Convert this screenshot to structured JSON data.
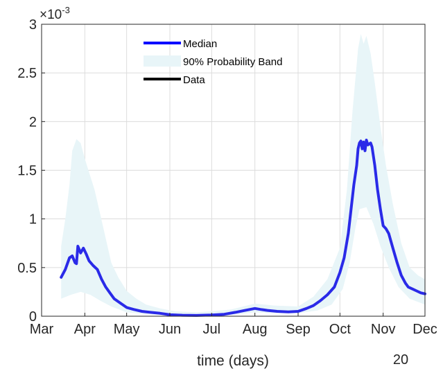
{
  "chart_data": {
    "type": "line",
    "title": "",
    "xlabel": "time (days)",
    "ylabel": "",
    "y_exponent_label": {
      "base": "×10",
      "power": "-3"
    },
    "x_secondary_label": "20",
    "x_ticks": [
      {
        "label": "Mar",
        "date": "2020-03-01"
      },
      {
        "label": "Apr",
        "date": "2020-04-01"
      },
      {
        "label": "May",
        "date": "2020-05-01"
      },
      {
        "label": "Jun",
        "date": "2020-06-01"
      },
      {
        "label": "Jul",
        "date": "2020-07-01"
      },
      {
        "label": "Aug",
        "date": "2020-08-01"
      },
      {
        "label": "Sep",
        "date": "2020-09-01"
      },
      {
        "label": "Oct",
        "date": "2020-10-01"
      },
      {
        "label": "Nov",
        "date": "2020-11-01"
      },
      {
        "label": "Dec",
        "date": "2020-12-01"
      }
    ],
    "y_ticks": [
      {
        "label": "0",
        "value": 0
      },
      {
        "label": "0.5",
        "value": 0.5
      },
      {
        "label": "1",
        "value": 1.0
      },
      {
        "label": "1.5",
        "value": 1.5
      },
      {
        "label": "2",
        "value": 2.0
      },
      {
        "label": "2.5",
        "value": 2.5
      },
      {
        "label": "3",
        "value": 3.0
      }
    ],
    "xlim": [
      "2020-03-01",
      "2020-12-01"
    ],
    "ylim": [
      0,
      3
    ],
    "grid": true,
    "legend_position": "top-center",
    "legend": [
      {
        "label": "Median",
        "kind": "line",
        "color": "#0000ff"
      },
      {
        "label": "90% Probability Band",
        "kind": "band",
        "color": "#e8f5f8"
      },
      {
        "label": "Data",
        "kind": "line",
        "color": "#000000"
      }
    ],
    "series": [
      {
        "name": "Median",
        "color": "#2a2ae8",
        "points": [
          [
            "2020-03-15",
            0.4
          ],
          [
            "2020-03-18",
            0.48
          ],
          [
            "2020-03-21",
            0.6
          ],
          [
            "2020-03-23",
            0.62
          ],
          [
            "2020-03-25",
            0.55
          ],
          [
            "2020-03-26",
            0.54
          ],
          [
            "2020-03-27",
            0.72
          ],
          [
            "2020-03-29",
            0.65
          ],
          [
            "2020-03-31",
            0.7
          ],
          [
            "2020-04-02",
            0.64
          ],
          [
            "2020-04-04",
            0.57
          ],
          [
            "2020-04-07",
            0.52
          ],
          [
            "2020-04-10",
            0.48
          ],
          [
            "2020-04-13",
            0.38
          ],
          [
            "2020-04-16",
            0.3
          ],
          [
            "2020-04-19",
            0.24
          ],
          [
            "2020-04-22",
            0.18
          ],
          [
            "2020-04-26",
            0.14
          ],
          [
            "2020-05-01",
            0.09
          ],
          [
            "2020-05-06",
            0.07
          ],
          [
            "2020-05-12",
            0.05
          ],
          [
            "2020-05-18",
            0.04
          ],
          [
            "2020-05-25",
            0.03
          ],
          [
            "2020-06-01",
            0.015
          ],
          [
            "2020-06-10",
            0.01
          ],
          [
            "2020-06-20",
            0.008
          ],
          [
            "2020-07-01",
            0.012
          ],
          [
            "2020-07-10",
            0.02
          ],
          [
            "2020-07-18",
            0.04
          ],
          [
            "2020-07-25",
            0.06
          ],
          [
            "2020-08-01",
            0.08
          ],
          [
            "2020-08-05",
            0.07
          ],
          [
            "2020-08-10",
            0.06
          ],
          [
            "2020-08-17",
            0.05
          ],
          [
            "2020-08-25",
            0.045
          ],
          [
            "2020-09-01",
            0.05
          ],
          [
            "2020-09-07",
            0.08
          ],
          [
            "2020-09-12",
            0.11
          ],
          [
            "2020-09-17",
            0.16
          ],
          [
            "2020-09-22",
            0.22
          ],
          [
            "2020-09-27",
            0.3
          ],
          [
            "2020-10-01",
            0.45
          ],
          [
            "2020-10-04",
            0.6
          ],
          [
            "2020-10-07",
            0.85
          ],
          [
            "2020-10-09",
            1.1
          ],
          [
            "2020-10-11",
            1.35
          ],
          [
            "2020-10-13",
            1.55
          ],
          [
            "2020-10-14",
            1.72
          ],
          [
            "2020-10-15",
            1.78
          ],
          [
            "2020-10-16",
            1.8
          ],
          [
            "2020-10-17",
            1.72
          ],
          [
            "2020-10-18",
            1.79
          ],
          [
            "2020-10-19",
            1.7
          ],
          [
            "2020-10-20",
            1.81
          ],
          [
            "2020-10-21",
            1.76
          ],
          [
            "2020-10-23",
            1.78
          ],
          [
            "2020-10-24",
            1.74
          ],
          [
            "2020-10-26",
            1.55
          ],
          [
            "2020-10-28",
            1.3
          ],
          [
            "2020-10-30",
            1.1
          ],
          [
            "2020-11-01",
            0.93
          ],
          [
            "2020-11-03",
            0.9
          ],
          [
            "2020-11-05",
            0.85
          ],
          [
            "2020-11-08",
            0.7
          ],
          [
            "2020-11-11",
            0.55
          ],
          [
            "2020-11-14",
            0.42
          ],
          [
            "2020-11-17",
            0.34
          ],
          [
            "2020-11-19",
            0.3
          ],
          [
            "2020-11-22",
            0.28
          ],
          [
            "2020-11-25",
            0.26
          ],
          [
            "2020-11-28",
            0.24
          ],
          [
            "2020-12-01",
            0.23
          ]
        ]
      },
      {
        "name": "90% Probability Band",
        "color": "#e8f5f8",
        "upper": [
          [
            "2020-03-15",
            0.72
          ],
          [
            "2020-03-18",
            1.0
          ],
          [
            "2020-03-21",
            1.35
          ],
          [
            "2020-03-23",
            1.7
          ],
          [
            "2020-03-26",
            1.82
          ],
          [
            "2020-03-29",
            1.78
          ],
          [
            "2020-04-01",
            1.62
          ],
          [
            "2020-04-04",
            1.48
          ],
          [
            "2020-04-08",
            1.3
          ],
          [
            "2020-04-12",
            1.05
          ],
          [
            "2020-04-16",
            0.8
          ],
          [
            "2020-04-20",
            0.55
          ],
          [
            "2020-04-25",
            0.4
          ],
          [
            "2020-05-01",
            0.26
          ],
          [
            "2020-05-08",
            0.18
          ],
          [
            "2020-05-15",
            0.12
          ],
          [
            "2020-05-25",
            0.08
          ],
          [
            "2020-06-05",
            0.05
          ],
          [
            "2020-06-20",
            0.04
          ],
          [
            "2020-07-01",
            0.05
          ],
          [
            "2020-07-15",
            0.07
          ],
          [
            "2020-08-01",
            0.13
          ],
          [
            "2020-08-15",
            0.11
          ],
          [
            "2020-09-01",
            0.1
          ],
          [
            "2020-09-12",
            0.2
          ],
          [
            "2020-09-22",
            0.38
          ],
          [
            "2020-10-01",
            0.7
          ],
          [
            "2020-10-06",
            1.3
          ],
          [
            "2020-10-10",
            2.1
          ],
          [
            "2020-10-14",
            2.75
          ],
          [
            "2020-10-16",
            2.9
          ],
          [
            "2020-10-18",
            2.8
          ],
          [
            "2020-10-20",
            2.88
          ],
          [
            "2020-10-23",
            2.7
          ],
          [
            "2020-10-26",
            2.4
          ],
          [
            "2020-10-30",
            1.95
          ],
          [
            "2020-11-03",
            1.55
          ],
          [
            "2020-11-08",
            1.15
          ],
          [
            "2020-11-14",
            0.75
          ],
          [
            "2020-11-20",
            0.5
          ],
          [
            "2020-11-26",
            0.42
          ],
          [
            "2020-12-01",
            0.38
          ]
        ],
        "lower": [
          [
            "2020-03-15",
            0.18
          ],
          [
            "2020-03-22",
            0.22
          ],
          [
            "2020-03-29",
            0.25
          ],
          [
            "2020-04-05",
            0.22
          ],
          [
            "2020-04-12",
            0.16
          ],
          [
            "2020-04-20",
            0.1
          ],
          [
            "2020-05-01",
            0.04
          ],
          [
            "2020-05-15",
            0.02
          ],
          [
            "2020-06-01",
            0.005
          ],
          [
            "2020-07-01",
            0.003
          ],
          [
            "2020-07-20",
            0.02
          ],
          [
            "2020-08-01",
            0.04
          ],
          [
            "2020-08-15",
            0.03
          ],
          [
            "2020-09-01",
            0.03
          ],
          [
            "2020-09-15",
            0.06
          ],
          [
            "2020-09-25",
            0.12
          ],
          [
            "2020-10-03",
            0.28
          ],
          [
            "2020-10-08",
            0.55
          ],
          [
            "2020-10-12",
            0.9
          ],
          [
            "2020-10-15",
            1.1
          ],
          [
            "2020-10-20",
            1.12
          ],
          [
            "2020-10-25",
            0.95
          ],
          [
            "2020-10-30",
            0.72
          ],
          [
            "2020-11-05",
            0.5
          ],
          [
            "2020-11-12",
            0.3
          ],
          [
            "2020-11-20",
            0.18
          ],
          [
            "2020-12-01",
            0.12
          ]
        ]
      }
    ]
  }
}
